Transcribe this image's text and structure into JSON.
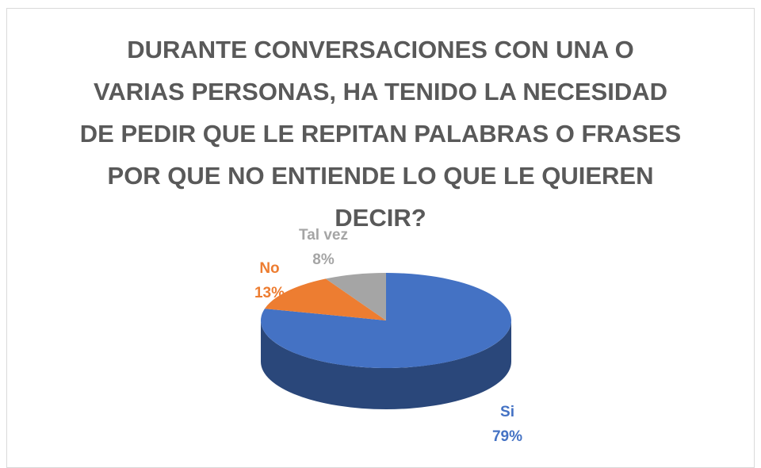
{
  "chart_data": {
    "type": "pie3d",
    "title": "DURANTE CONVERSACIONES CON UNA O VARIAS PERSONAS, HA TENIDO LA NECESIDAD DE PEDIR QUE LE REPITAN PALABRAS O FRASES POR QUE NO ENTIENDE LO QUE LE QUIEREN DECIR?",
    "categories": [
      "Si",
      "No",
      "Tal vez"
    ],
    "values": [
      79,
      13,
      8
    ],
    "value_labels": [
      "79%",
      "13%",
      "8%"
    ],
    "colors": [
      "#4472c4",
      "#ed7d31",
      "#a5a5a5"
    ]
  }
}
